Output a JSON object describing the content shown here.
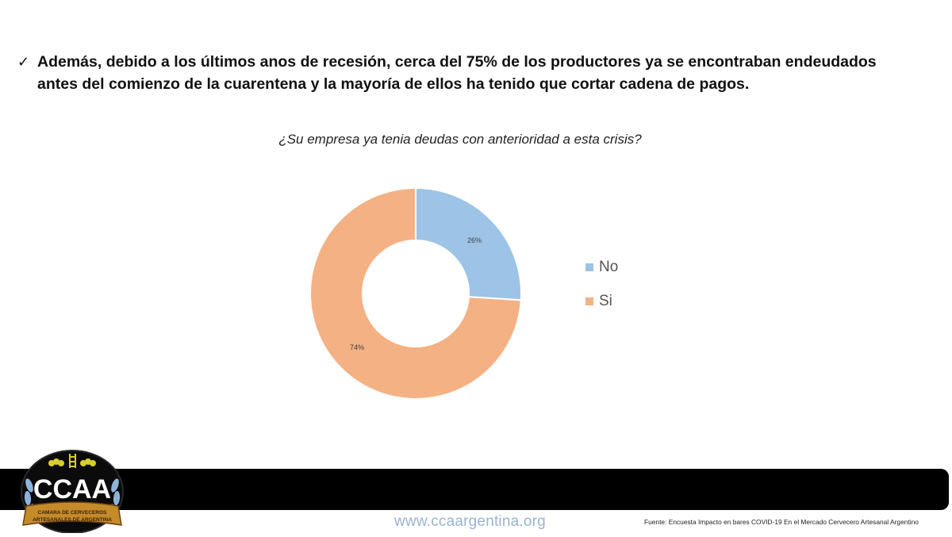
{
  "headline": {
    "bullet_icon": "checkmark-icon",
    "bullet_glyph": "✓",
    "line1": "Además, debido a los últimos anos de recesión, cerca del 75% de los productores ya se encontraban endeudados",
    "line2": "antes del comienzo de la cuarentena y la mayoría de ellos ha tenido que cortar cadena de pagos."
  },
  "chart_data": {
    "type": "pie",
    "variant": "doughnut",
    "title": "¿Su empresa ya tenia deudas con anterioridad a esta crisis?",
    "categories": [
      "No",
      "Si"
    ],
    "values": [
      26,
      74
    ],
    "labels": [
      "26%",
      "74%"
    ],
    "colors": [
      "#9dc3e6",
      "#f4b183"
    ],
    "legend_position": "right",
    "start_angle_deg": 0,
    "direction": "clockwise"
  },
  "legend": {
    "items": [
      {
        "label": "No",
        "color": "#9dc3e6"
      },
      {
        "label": "Si",
        "color": "#f4b183"
      }
    ]
  },
  "footer": {
    "logo": {
      "abbrev": "CCAA",
      "ribbon_line1": "CAMARA DE CERVECEROS",
      "ribbon_line2": "ARTESANALES DE ARGENTINA"
    },
    "url": "www.ccaargentina.org",
    "source": "Fuente: Encuesta Impacto en bares COVID-19 En el Mercado Cervecero Artesanal Argentino"
  }
}
